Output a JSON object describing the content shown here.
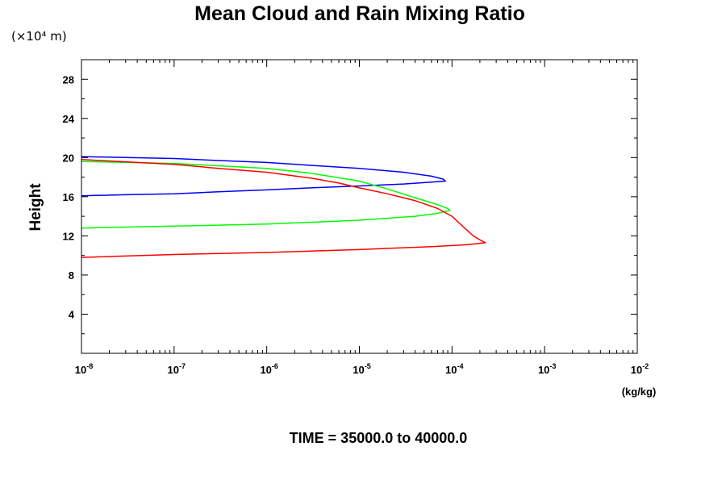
{
  "chart_data": {
    "type": "line",
    "title": "Mean Cloud and Rain Mixing Ratio",
    "ylabel": "Height",
    "y_scale_label": "(×10⁴ m)",
    "xlabel_unit": "(kg/kg)",
    "footer": "TIME = 35000.0 to 40000.0",
    "x_scale": "log",
    "xlim": [
      1e-08,
      0.01
    ],
    "ylim": [
      0,
      30
    ],
    "x_ticks": [
      {
        "base": "10",
        "exp": "-8"
      },
      {
        "base": "10",
        "exp": "-7"
      },
      {
        "base": "10",
        "exp": "-6"
      },
      {
        "base": "10",
        "exp": "-5"
      },
      {
        "base": "10",
        "exp": "-4"
      },
      {
        "base": "10",
        "exp": "-3"
      },
      {
        "base": "10",
        "exp": "-2"
      }
    ],
    "y_ticks": [
      "4",
      "8",
      "12",
      "16",
      "20",
      "24",
      "28"
    ],
    "grid": false,
    "legend": "none",
    "series": [
      {
        "color": "#0000ff",
        "points": [
          [
            1e-08,
            20.1
          ],
          [
            3e-08,
            20.0
          ],
          [
            1e-07,
            19.9
          ],
          [
            3e-07,
            19.7
          ],
          [
            1e-06,
            19.5
          ],
          [
            3e-06,
            19.2
          ],
          [
            1e-05,
            18.9
          ],
          [
            3e-05,
            18.5
          ],
          [
            6e-05,
            18.1
          ],
          [
            8e-05,
            17.8
          ],
          [
            8.5e-05,
            17.6
          ],
          [
            6e-05,
            17.5
          ],
          [
            3e-05,
            17.3
          ],
          [
            1e-05,
            17.1
          ],
          [
            3e-06,
            16.9
          ],
          [
            1e-06,
            16.7
          ],
          [
            3e-07,
            16.5
          ],
          [
            1e-07,
            16.3
          ],
          [
            3e-08,
            16.2
          ],
          [
            1e-08,
            16.1
          ]
        ]
      },
      {
        "color": "#00ff00",
        "points": [
          [
            1e-08,
            19.6
          ],
          [
            1e-07,
            19.4
          ],
          [
            1e-06,
            18.9
          ],
          [
            3e-06,
            18.4
          ],
          [
            1e-05,
            17.6
          ],
          [
            2e-05,
            16.8
          ],
          [
            4e-05,
            15.9
          ],
          [
            7e-05,
            15.2
          ],
          [
            9e-05,
            14.8
          ],
          [
            9.5e-05,
            14.6
          ],
          [
            7e-05,
            14.3
          ],
          [
            4e-05,
            14.0
          ],
          [
            1e-05,
            13.6
          ],
          [
            1e-06,
            13.2
          ],
          [
            1e-07,
            13.0
          ],
          [
            1e-08,
            12.8
          ]
        ]
      },
      {
        "color": "#ff0000",
        "points": [
          [
            1e-08,
            19.8
          ],
          [
            1e-07,
            19.3
          ],
          [
            3e-07,
            18.9
          ],
          [
            1e-06,
            18.5
          ],
          [
            3e-06,
            17.9
          ],
          [
            6e-06,
            17.4
          ],
          [
            1e-05,
            16.9
          ],
          [
            2e-05,
            16.3
          ],
          [
            4e-05,
            15.6
          ],
          [
            7e-05,
            14.8
          ],
          [
            0.0001,
            14.0
          ],
          [
            0.00013,
            13.0
          ],
          [
            0.00017,
            12.0
          ],
          [
            0.0002,
            11.6
          ],
          [
            0.00023,
            11.3
          ],
          [
            0.00015,
            11.1
          ],
          [
            6e-05,
            10.9
          ],
          [
            1e-05,
            10.6
          ],
          [
            1e-06,
            10.3
          ],
          [
            1e-07,
            10.1
          ],
          [
            1e-08,
            9.8
          ]
        ]
      }
    ]
  }
}
